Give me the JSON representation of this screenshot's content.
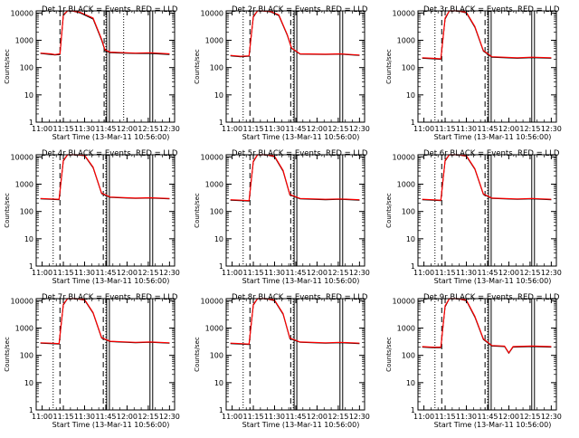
{
  "chart_data": [
    {
      "type": "line",
      "title": "Det 1r BLACK = Events, RED = LLD",
      "xlabel": "Start Time (13-Mar-11 10:56:00)",
      "ylabel": "Counts/sec",
      "ylim": [
        1,
        12000
      ],
      "yscale": "log",
      "x_ticks": [
        "11:00",
        "11:15",
        "11:30",
        "11:45",
        "12:00",
        "12:15",
        "12:30"
      ],
      "y_ticks": [
        "1",
        "10",
        "100",
        "1000",
        "10000"
      ],
      "dotted_lines": [
        11.96,
        11.75
      ],
      "dashed_lines": [
        11.21,
        11.73
      ],
      "solid_lines": [
        11.76,
        12.27
      ],
      "series": [
        {
          "name": "Events",
          "color": "#000000",
          "x": [
            10.98,
            11.1,
            11.15,
            11.21,
            11.25,
            11.3,
            11.35,
            11.45,
            11.6,
            11.7,
            11.74,
            11.8,
            12.1,
            12.27,
            12.5
          ],
          "y": [
            330,
            300,
            290,
            300,
            8000,
            12000,
            12000,
            10000,
            6000,
            1000,
            420,
            350,
            330,
            330,
            300
          ]
        },
        {
          "name": "LLD",
          "color": "#ff0000",
          "x": [
            10.98,
            11.1,
            11.15,
            11.21,
            11.25,
            11.3,
            11.35,
            11.45,
            11.6,
            11.7,
            11.74,
            11.8,
            12.1,
            12.27,
            12.5
          ],
          "y": [
            340,
            320,
            300,
            320,
            8500,
            12000,
            12000,
            10500,
            6500,
            1100,
            450,
            370,
            340,
            350,
            320
          ]
        }
      ]
    },
    {
      "type": "line",
      "title": "Det 2r BLACK = Events, RED = LLD",
      "xlabel": "Start Time (13-Mar-11 10:56:00)",
      "ylabel": "Counts/sec",
      "ylim": [
        1,
        12000
      ],
      "yscale": "log",
      "x_ticks": [
        "11:00",
        "11:15",
        "11:30",
        "11:45",
        "12:00",
        "12:15",
        "12:30"
      ],
      "y_ticks": [
        "1",
        "10",
        "100",
        "1000",
        "10000"
      ],
      "dotted_lines": [
        11.13,
        11.72
      ],
      "dashed_lines": [
        11.21,
        11.69
      ],
      "solid_lines": [
        11.73,
        12.27
      ],
      "series": [
        {
          "name": "Events",
          "color": "#000000",
          "x": [
            10.98,
            11.1,
            11.2,
            11.25,
            11.3,
            11.35,
            11.45,
            11.55,
            11.65,
            11.7,
            11.8,
            12.1,
            12.27,
            12.5
          ],
          "y": [
            270,
            250,
            260,
            7000,
            12000,
            12000,
            11000,
            8000,
            1500,
            500,
            310,
            300,
            310,
            280
          ]
        },
        {
          "name": "LLD",
          "color": "#ff0000",
          "x": [
            10.98,
            11.1,
            11.2,
            11.25,
            11.3,
            11.35,
            11.45,
            11.55,
            11.65,
            11.7,
            11.8,
            12.1,
            12.27,
            12.5
          ],
          "y": [
            280,
            260,
            270,
            7500,
            12000,
            12000,
            11500,
            8500,
            1600,
            520,
            320,
            310,
            320,
            290
          ]
        }
      ]
    },
    {
      "type": "line",
      "title": "Det 3r BLACK = Events, RED = LLD",
      "xlabel": "Start Time (13-Mar-11 10:56:00)",
      "ylabel": "Counts/sec",
      "ylim": [
        1,
        12000
      ],
      "yscale": "log",
      "x_ticks": [
        "11:00",
        "11:15",
        "11:30",
        "11:45",
        "12:00",
        "12:15",
        "12:30"
      ],
      "y_ticks": [
        "1",
        "10",
        "100",
        "1000",
        "10000"
      ],
      "dotted_lines": [
        11.13,
        11.75
      ],
      "dashed_lines": [
        11.21,
        11.72
      ],
      "solid_lines": [
        11.76,
        12.27
      ],
      "series": [
        {
          "name": "Events",
          "color": "#000000",
          "x": [
            10.98,
            11.1,
            11.2,
            11.25,
            11.3,
            11.4,
            11.5,
            11.6,
            11.7,
            11.8,
            12.1,
            12.27,
            12.5
          ],
          "y": [
            220,
            210,
            200,
            6000,
            12000,
            12000,
            10000,
            3000,
            400,
            240,
            220,
            230,
            220
          ]
        },
        {
          "name": "LLD",
          "color": "#ff0000",
          "x": [
            10.98,
            11.1,
            11.2,
            11.25,
            11.3,
            11.4,
            11.5,
            11.6,
            11.7,
            11.8,
            12.1,
            12.27,
            12.5
          ],
          "y": [
            230,
            220,
            210,
            6500,
            12000,
            12000,
            10500,
            3200,
            420,
            250,
            230,
            240,
            230
          ]
        }
      ]
    },
    {
      "type": "line",
      "title": "Det 4r BLACK = Events, RED = LLD",
      "xlabel": "Start Time (13-Mar-11 10:56:00)",
      "ylabel": "Counts/sec",
      "ylim": [
        1,
        12000
      ],
      "yscale": "log",
      "x_ticks": [
        "11:00",
        "11:15",
        "11:30",
        "11:45",
        "12:00",
        "12:15",
        "12:30"
      ],
      "y_ticks": [
        "1",
        "10",
        "100",
        "1000",
        "10000"
      ],
      "dotted_lines": [
        11.13,
        11.75
      ],
      "dashed_lines": [
        11.21,
        11.72
      ],
      "solid_lines": [
        11.76,
        12.27
      ],
      "series": [
        {
          "name": "Events",
          "color": "#000000",
          "x": [
            10.98,
            11.1,
            11.2,
            11.25,
            11.3,
            11.4,
            11.5,
            11.6,
            11.7,
            11.8,
            12.1,
            12.27,
            12.5
          ],
          "y": [
            290,
            280,
            270,
            7000,
            12000,
            12000,
            11000,
            4000,
            450,
            330,
            300,
            310,
            290
          ]
        },
        {
          "name": "LLD",
          "color": "#ff0000",
          "x": [
            10.98,
            11.1,
            11.2,
            11.25,
            11.3,
            11.4,
            11.5,
            11.6,
            11.7,
            11.8,
            12.1,
            12.27,
            12.5
          ],
          "y": [
            300,
            290,
            280,
            7500,
            12000,
            12000,
            11500,
            4200,
            470,
            340,
            310,
            320,
            300
          ]
        }
      ]
    },
    {
      "type": "line",
      "title": "Det 5r BLACK = Events, RED = LLD",
      "xlabel": "Start Time (13-Mar-11 10:56:00)",
      "ylabel": "Counts/sec",
      "ylim": [
        1,
        12000
      ],
      "yscale": "log",
      "x_ticks": [
        "11:00",
        "11:15",
        "11:30",
        "11:45",
        "12:00",
        "12:15",
        "12:30"
      ],
      "y_ticks": [
        "1",
        "10",
        "100",
        "1000",
        "10000"
      ],
      "dotted_lines": [
        11.13,
        11.72
      ],
      "dashed_lines": [
        11.21,
        11.69
      ],
      "solid_lines": [
        11.73,
        12.27
      ],
      "series": [
        {
          "name": "Events",
          "color": "#000000",
          "x": [
            10.98,
            11.1,
            11.2,
            11.25,
            11.3,
            11.4,
            11.5,
            11.6,
            11.68,
            11.8,
            12.1,
            12.27,
            12.5
          ],
          "y": [
            260,
            250,
            240,
            6500,
            12000,
            12000,
            10000,
            3000,
            400,
            290,
            270,
            280,
            260
          ]
        },
        {
          "name": "LLD",
          "color": "#ff0000",
          "x": [
            10.98,
            11.1,
            11.2,
            11.25,
            11.3,
            11.4,
            11.5,
            11.6,
            11.68,
            11.8,
            12.1,
            12.27,
            12.5
          ],
          "y": [
            270,
            260,
            250,
            7000,
            12000,
            12000,
            10500,
            3200,
            420,
            300,
            280,
            290,
            270
          ]
        }
      ]
    },
    {
      "type": "line",
      "title": "Det 6r BLACK = Events, RED = LLD",
      "xlabel": "Start Time (13-Mar-11 10:56:00)",
      "ylabel": "Counts/sec",
      "ylim": [
        1,
        12000
      ],
      "yscale": "log",
      "x_ticks": [
        "11:00",
        "11:15",
        "11:30",
        "11:45",
        "12:00",
        "12:15",
        "12:30"
      ],
      "y_ticks": [
        "1",
        "10",
        "100",
        "1000",
        "10000"
      ],
      "dotted_lines": [
        11.13,
        11.75
      ],
      "dashed_lines": [
        11.21,
        11.72
      ],
      "solid_lines": [
        11.76,
        12.27
      ],
      "series": [
        {
          "name": "Events",
          "color": "#000000",
          "x": [
            10.98,
            11.1,
            11.2,
            11.25,
            11.3,
            11.4,
            11.5,
            11.6,
            11.7,
            11.8,
            12.1,
            12.27,
            12.5
          ],
          "y": [
            270,
            260,
            250,
            7000,
            12000,
            12000,
            10500,
            3500,
            420,
            300,
            280,
            290,
            270
          ]
        },
        {
          "name": "LLD",
          "color": "#ff0000",
          "x": [
            10.98,
            11.1,
            11.2,
            11.25,
            11.3,
            11.4,
            11.5,
            11.6,
            11.7,
            11.8,
            12.1,
            12.27,
            12.5
          ],
          "y": [
            280,
            270,
            260,
            7500,
            12000,
            12000,
            11000,
            3700,
            440,
            310,
            290,
            300,
            280
          ]
        }
      ]
    },
    {
      "type": "line",
      "title": "Det 7r BLACK = Events, RED = LLD",
      "xlabel": "Start Time (13-Mar-11 10:56:00)",
      "ylabel": "Counts/sec",
      "ylim": [
        1,
        12000
      ],
      "yscale": "log",
      "x_ticks": [
        "11:00",
        "11:15",
        "11:30",
        "11:45",
        "12:00",
        "12:15",
        "12:30"
      ],
      "y_ticks": [
        "1",
        "10",
        "100",
        "1000",
        "10000"
      ],
      "dotted_lines": [
        11.13,
        11.75
      ],
      "dashed_lines": [
        11.21,
        11.72
      ],
      "solid_lines": [
        11.76,
        12.27
      ],
      "series": [
        {
          "name": "Events",
          "color": "#000000",
          "x": [
            10.98,
            11.1,
            11.2,
            11.25,
            11.3,
            11.4,
            11.5,
            11.6,
            11.7,
            11.8,
            12.1,
            12.27,
            12.5
          ],
          "y": [
            280,
            270,
            260,
            7000,
            12000,
            12000,
            10500,
            3500,
            430,
            320,
            290,
            300,
            280
          ]
        },
        {
          "name": "LLD",
          "color": "#ff0000",
          "x": [
            10.98,
            11.1,
            11.2,
            11.25,
            11.3,
            11.4,
            11.5,
            11.6,
            11.7,
            11.8,
            12.1,
            12.27,
            12.5
          ],
          "y": [
            290,
            280,
            270,
            7500,
            12000,
            12000,
            11000,
            3700,
            450,
            330,
            300,
            310,
            290
          ]
        }
      ]
    },
    {
      "type": "line",
      "title": "Det 8r BLACK = Events, RED = LLD",
      "xlabel": "Start Time (13-Mar-11 10:56:00)",
      "ylabel": "Counts/sec",
      "ylim": [
        1,
        12000
      ],
      "yscale": "log",
      "x_ticks": [
        "11:00",
        "11:15",
        "11:30",
        "11:45",
        "12:00",
        "12:15",
        "12:30"
      ],
      "y_ticks": [
        "1",
        "10",
        "100",
        "1000",
        "10000"
      ],
      "dotted_lines": [
        11.13,
        11.72
      ],
      "dashed_lines": [
        11.21,
        11.69
      ],
      "solid_lines": [
        11.73,
        12.27
      ],
      "series": [
        {
          "name": "Events",
          "color": "#000000",
          "x": [
            10.98,
            11.1,
            11.2,
            11.25,
            11.3,
            11.4,
            11.5,
            11.6,
            11.68,
            11.8,
            12.1,
            12.27,
            12.5
          ],
          "y": [
            270,
            260,
            250,
            6800,
            12000,
            12000,
            10000,
            3200,
            410,
            300,
            280,
            290,
            270
          ]
        },
        {
          "name": "LLD",
          "color": "#ff0000",
          "x": [
            10.98,
            11.1,
            11.2,
            11.25,
            11.3,
            11.4,
            11.5,
            11.6,
            11.68,
            11.8,
            12.1,
            12.27,
            12.5
          ],
          "y": [
            280,
            270,
            260,
            7300,
            12000,
            12000,
            10500,
            3400,
            430,
            310,
            290,
            300,
            280
          ]
        }
      ]
    },
    {
      "type": "line",
      "title": "Det 9r BLACK = Events, RED = LLD",
      "xlabel": "Start Time (13-Mar-11 10:56:00)",
      "ylabel": "Counts/sec",
      "ylim": [
        1,
        12000
      ],
      "yscale": "log",
      "x_ticks": [
        "11:00",
        "11:15",
        "11:30",
        "11:45",
        "12:00",
        "12:15",
        "12:30"
      ],
      "y_ticks": [
        "1",
        "10",
        "100",
        "1000",
        "10000"
      ],
      "dotted_lines": [
        11.13,
        11.75
      ],
      "dashed_lines": [
        11.21,
        11.72
      ],
      "solid_lines": [
        11.76,
        12.27
      ],
      "series": [
        {
          "name": "Events",
          "color": "#000000",
          "x": [
            10.98,
            11.1,
            11.2,
            11.25,
            11.3,
            11.4,
            11.5,
            11.6,
            11.7,
            11.8,
            11.95,
            12.0,
            12.05,
            12.27,
            12.5
          ],
          "y": [
            200,
            190,
            190,
            6000,
            12000,
            12000,
            10000,
            2500,
            380,
            220,
            210,
            120,
            200,
            210,
            200
          ]
        },
        {
          "name": "LLD",
          "color": "#ff0000",
          "x": [
            10.98,
            11.1,
            11.2,
            11.25,
            11.3,
            11.4,
            11.5,
            11.6,
            11.7,
            11.8,
            11.95,
            12.0,
            12.05,
            12.27,
            12.5
          ],
          "y": [
            210,
            200,
            200,
            6500,
            12000,
            12000,
            10500,
            2700,
            400,
            230,
            220,
            125,
            210,
            220,
            210
          ]
        }
      ]
    }
  ]
}
